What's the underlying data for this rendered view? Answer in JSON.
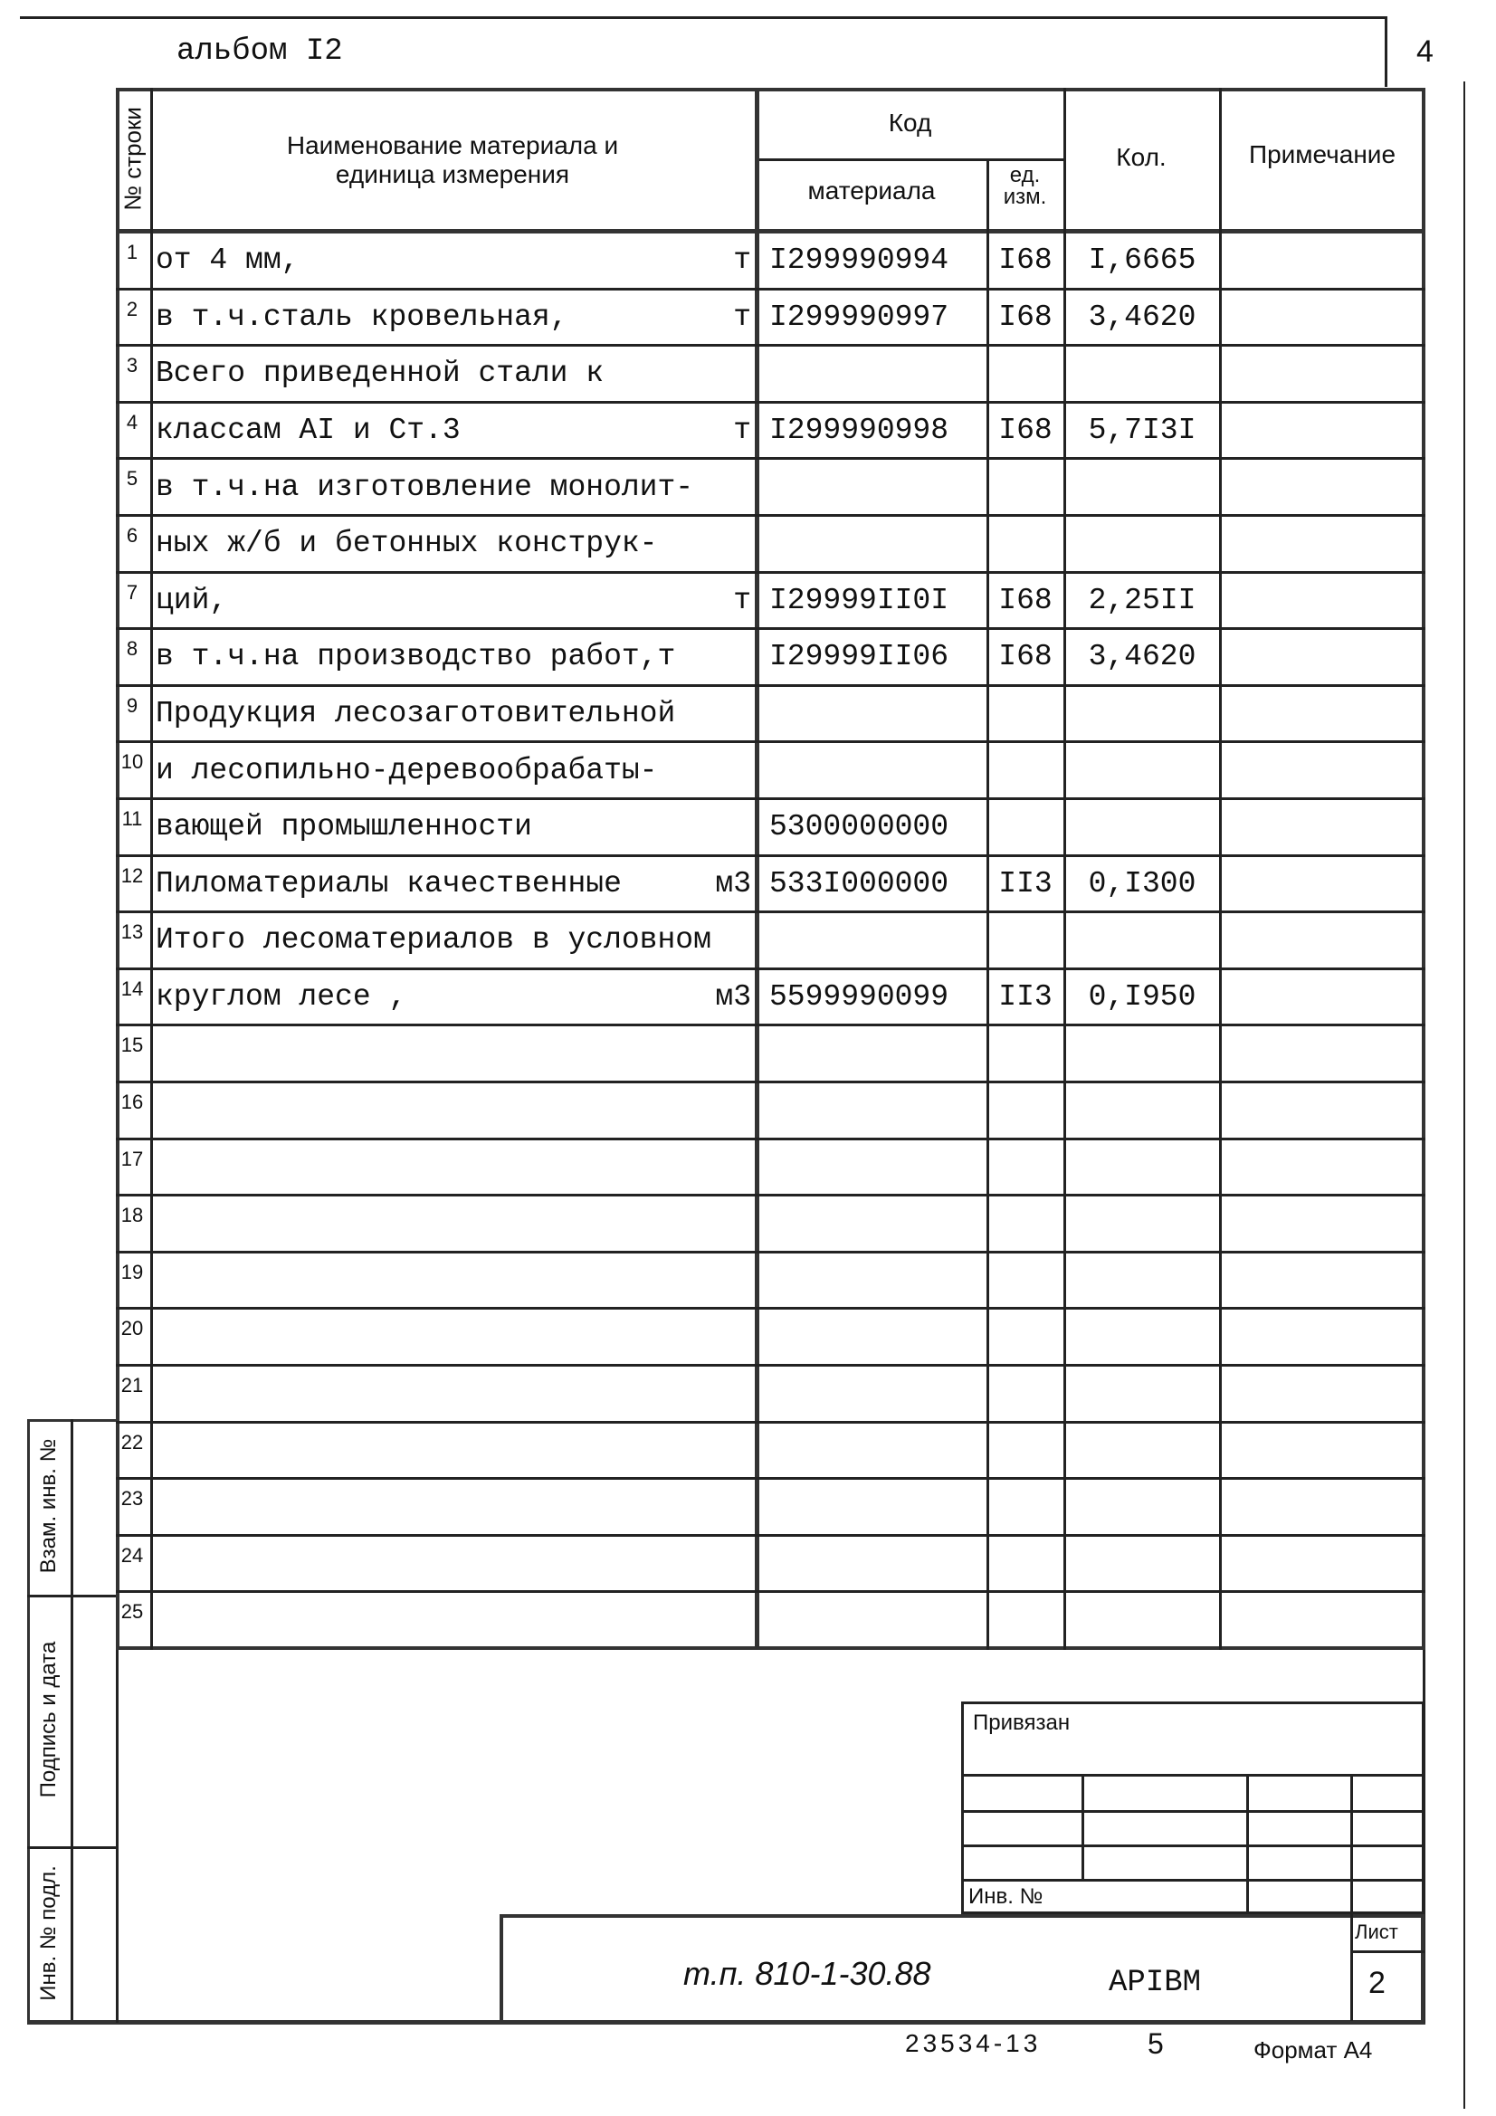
{
  "header": {
    "album": "альбом I2",
    "page_number": "4"
  },
  "table": {
    "col_row_no": "№ строки",
    "col_name": "Наименование материала  и единица измерения",
    "col_code": "Код",
    "col_code_material": "материала",
    "col_code_unit": "ед. изм.",
    "col_qty": "Кол.",
    "col_note": "Примечание",
    "rows": [
      {
        "n": "1",
        "name": "от 4 мм,",
        "unit": "т",
        "code": "I299990994",
        "ed": "I68",
        "qty": "I,6665"
      },
      {
        "n": "2",
        "name": "в т.ч.сталь кровельная,",
        "unit": "т",
        "code": "I299990997",
        "ed": "I68",
        "qty": "3,4620"
      },
      {
        "n": "3",
        "name": "Всего приведенной стали к",
        "unit": "",
        "code": "",
        "ed": "",
        "qty": ""
      },
      {
        "n": "4",
        "name": "классам АI и Ст.3",
        "unit": "т",
        "code": "I299990998",
        "ed": "I68",
        "qty": "5,7I3I"
      },
      {
        "n": "5",
        "name": "в т.ч.на изготовление монолит-",
        "unit": "",
        "code": "",
        "ed": "",
        "qty": ""
      },
      {
        "n": "6",
        "name": "ных ж/б и бетонных конструк-",
        "unit": "",
        "code": "",
        "ed": "",
        "qty": ""
      },
      {
        "n": "7",
        "name": "ций,",
        "unit": "т",
        "code": "I29999II0I",
        "ed": "I68",
        "qty": "2,25II"
      },
      {
        "n": "8",
        "name": "в т.ч.на производство работ,т",
        "unit": "",
        "code": "I29999II06",
        "ed": "I68",
        "qty": "3,4620"
      },
      {
        "n": "9",
        "name": "Продукция лесозаготовительной",
        "unit": "",
        "code": "",
        "ed": "",
        "qty": ""
      },
      {
        "n": "10",
        "name": "и лесопильно-деревообрабаты-",
        "unit": "",
        "code": "",
        "ed": "",
        "qty": ""
      },
      {
        "n": "11",
        "name": "вающей промышленности",
        "unit": "",
        "code": "5300000000",
        "ed": "",
        "qty": ""
      },
      {
        "n": "12",
        "name": "Пиломатериалы качественные",
        "unit": "м3",
        "code": "533I000000",
        "ed": "II3",
        "qty": "0,I300"
      },
      {
        "n": "13",
        "name": "Итого лесоматериалов в условном",
        "unit": "",
        "code": "",
        "ed": "",
        "qty": ""
      },
      {
        "n": "14",
        "name": "круглом лесе ,",
        "unit": "м3",
        "code": "5599990099",
        "ed": "II3",
        "qty": "0,I950"
      },
      {
        "n": "15",
        "name": "",
        "unit": "",
        "code": "",
        "ed": "",
        "qty": ""
      },
      {
        "n": "16",
        "name": "",
        "unit": "",
        "code": "",
        "ed": "",
        "qty": ""
      },
      {
        "n": "17",
        "name": "",
        "unit": "",
        "code": "",
        "ed": "",
        "qty": ""
      },
      {
        "n": "18",
        "name": "",
        "unit": "",
        "code": "",
        "ed": "",
        "qty": ""
      },
      {
        "n": "19",
        "name": "",
        "unit": "",
        "code": "",
        "ed": "",
        "qty": ""
      },
      {
        "n": "20",
        "name": "",
        "unit": "",
        "code": "",
        "ed": "",
        "qty": ""
      },
      {
        "n": "21",
        "name": "",
        "unit": "",
        "code": "",
        "ed": "",
        "qty": ""
      },
      {
        "n": "22",
        "name": "",
        "unit": "",
        "code": "",
        "ed": "",
        "qty": ""
      },
      {
        "n": "23",
        "name": "",
        "unit": "",
        "code": "",
        "ed": "",
        "qty": ""
      },
      {
        "n": "24",
        "name": "",
        "unit": "",
        "code": "",
        "ed": "",
        "qty": ""
      },
      {
        "n": "25",
        "name": "",
        "unit": "",
        "code": "",
        "ed": "",
        "qty": ""
      }
    ]
  },
  "side": {
    "replace_inv": "Взам. инв. №",
    "signature_date": "Подпись и дата",
    "inv_original": "Инв. № подл."
  },
  "stamp": {
    "bound": "Привязан",
    "inv_no": "Инв. №",
    "sheet_label": "Лист",
    "sheet": "2",
    "doc_code": "т.п. 810-1-30.88",
    "doc_mark": "АРIВМ"
  },
  "footer": {
    "order": "23534-13",
    "num": "5",
    "format": "Формат А4"
  }
}
